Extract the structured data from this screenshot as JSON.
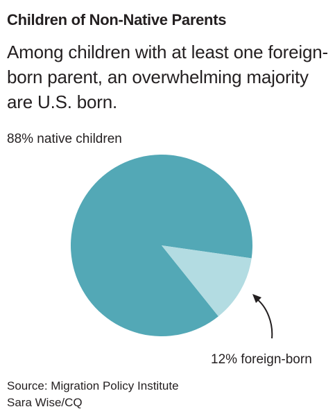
{
  "title": "Children of Non-Native Parents",
  "subtitle": "Among children with at least one foreign-born parent, an overwhelming majority are U.S. born.",
  "source": "Source: Migration Policy Institute",
  "credit": "Sara Wise/CQ",
  "colors": {
    "native": "#53a8b6",
    "foreign": "#b3dce2",
    "text": "#231f20"
  },
  "chart_data": {
    "type": "pie",
    "title": "Children of Non-Native Parents",
    "subtitle": "Among children with at least one foreign-born parent, an overwhelming majority are U.S. born.",
    "slices": [
      {
        "label": "88% native children",
        "value": 88,
        "color": "#53a8b6"
      },
      {
        "label": "12% foreign-born",
        "value": 12,
        "color": "#b3dce2"
      }
    ],
    "legend": "none"
  }
}
